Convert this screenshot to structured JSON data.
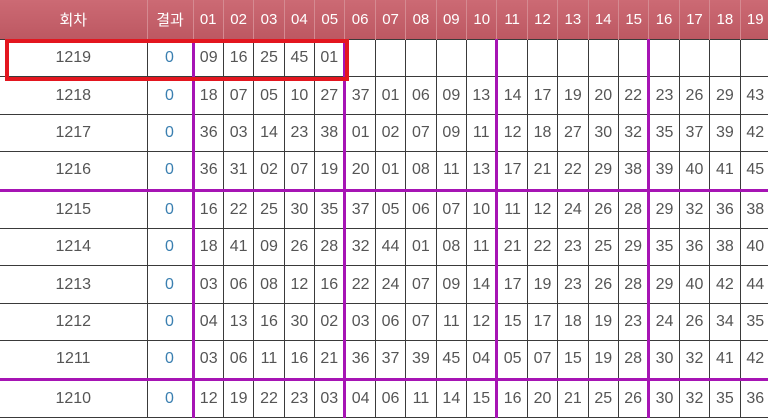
{
  "header": {
    "round_label": "회차",
    "result_label": "결과",
    "number_columns": [
      "01",
      "02",
      "03",
      "04",
      "05",
      "06",
      "07",
      "08",
      "09",
      "10",
      "11",
      "12",
      "13",
      "14",
      "15",
      "16",
      "17",
      "18",
      "19"
    ]
  },
  "rows": [
    {
      "round": "1219",
      "result": "0",
      "numbers": [
        "09",
        "16",
        "25",
        "45",
        "01",
        "",
        "",
        "",
        "",
        "",
        "",
        "",
        "",
        "",
        "",
        "",
        "",
        "",
        ""
      ]
    },
    {
      "round": "1218",
      "result": "0",
      "numbers": [
        "18",
        "07",
        "05",
        "10",
        "27",
        "37",
        "01",
        "06",
        "09",
        "13",
        "14",
        "17",
        "19",
        "20",
        "22",
        "23",
        "26",
        "29",
        "43"
      ]
    },
    {
      "round": "1217",
      "result": "0",
      "numbers": [
        "36",
        "03",
        "14",
        "23",
        "38",
        "01",
        "02",
        "07",
        "09",
        "11",
        "12",
        "18",
        "27",
        "30",
        "32",
        "35",
        "37",
        "39",
        "42"
      ]
    },
    {
      "round": "1216",
      "result": "0",
      "numbers": [
        "36",
        "31",
        "02",
        "07",
        "19",
        "20",
        "01",
        "08",
        "11",
        "13",
        "17",
        "21",
        "22",
        "29",
        "38",
        "39",
        "40",
        "41",
        "45"
      ]
    },
    {
      "round": "1215",
      "result": "0",
      "numbers": [
        "16",
        "22",
        "25",
        "30",
        "35",
        "37",
        "05",
        "06",
        "07",
        "10",
        "11",
        "12",
        "24",
        "26",
        "28",
        "29",
        "32",
        "36",
        "38"
      ]
    },
    {
      "round": "1214",
      "result": "0",
      "numbers": [
        "18",
        "41",
        "09",
        "26",
        "28",
        "32",
        "44",
        "01",
        "08",
        "11",
        "21",
        "22",
        "23",
        "25",
        "29",
        "35",
        "36",
        "38",
        "40"
      ]
    },
    {
      "round": "1213",
      "result": "0",
      "numbers": [
        "03",
        "06",
        "08",
        "12",
        "16",
        "22",
        "24",
        "07",
        "09",
        "14",
        "17",
        "19",
        "23",
        "26",
        "28",
        "29",
        "40",
        "42",
        "44"
      ]
    },
    {
      "round": "1212",
      "result": "0",
      "numbers": [
        "04",
        "13",
        "16",
        "30",
        "02",
        "03",
        "06",
        "07",
        "11",
        "12",
        "15",
        "17",
        "18",
        "19",
        "23",
        "24",
        "26",
        "34",
        "35"
      ]
    },
    {
      "round": "1211",
      "result": "0",
      "numbers": [
        "03",
        "06",
        "11",
        "16",
        "21",
        "36",
        "37",
        "39",
        "45",
        "04",
        "05",
        "07",
        "15",
        "19",
        "28",
        "30",
        "32",
        "41",
        "42"
      ]
    },
    {
      "round": "1210",
      "result": "0",
      "numbers": [
        "12",
        "19",
        "22",
        "23",
        "03",
        "04",
        "06",
        "11",
        "14",
        "15",
        "16",
        "20",
        "21",
        "25",
        "26",
        "30",
        "32",
        "35",
        "36"
      ]
    }
  ],
  "colors": {
    "header": "#c4606a",
    "group_divider": "#a614b4",
    "highlight": "#e3161f",
    "result": "#3a7fb0"
  }
}
